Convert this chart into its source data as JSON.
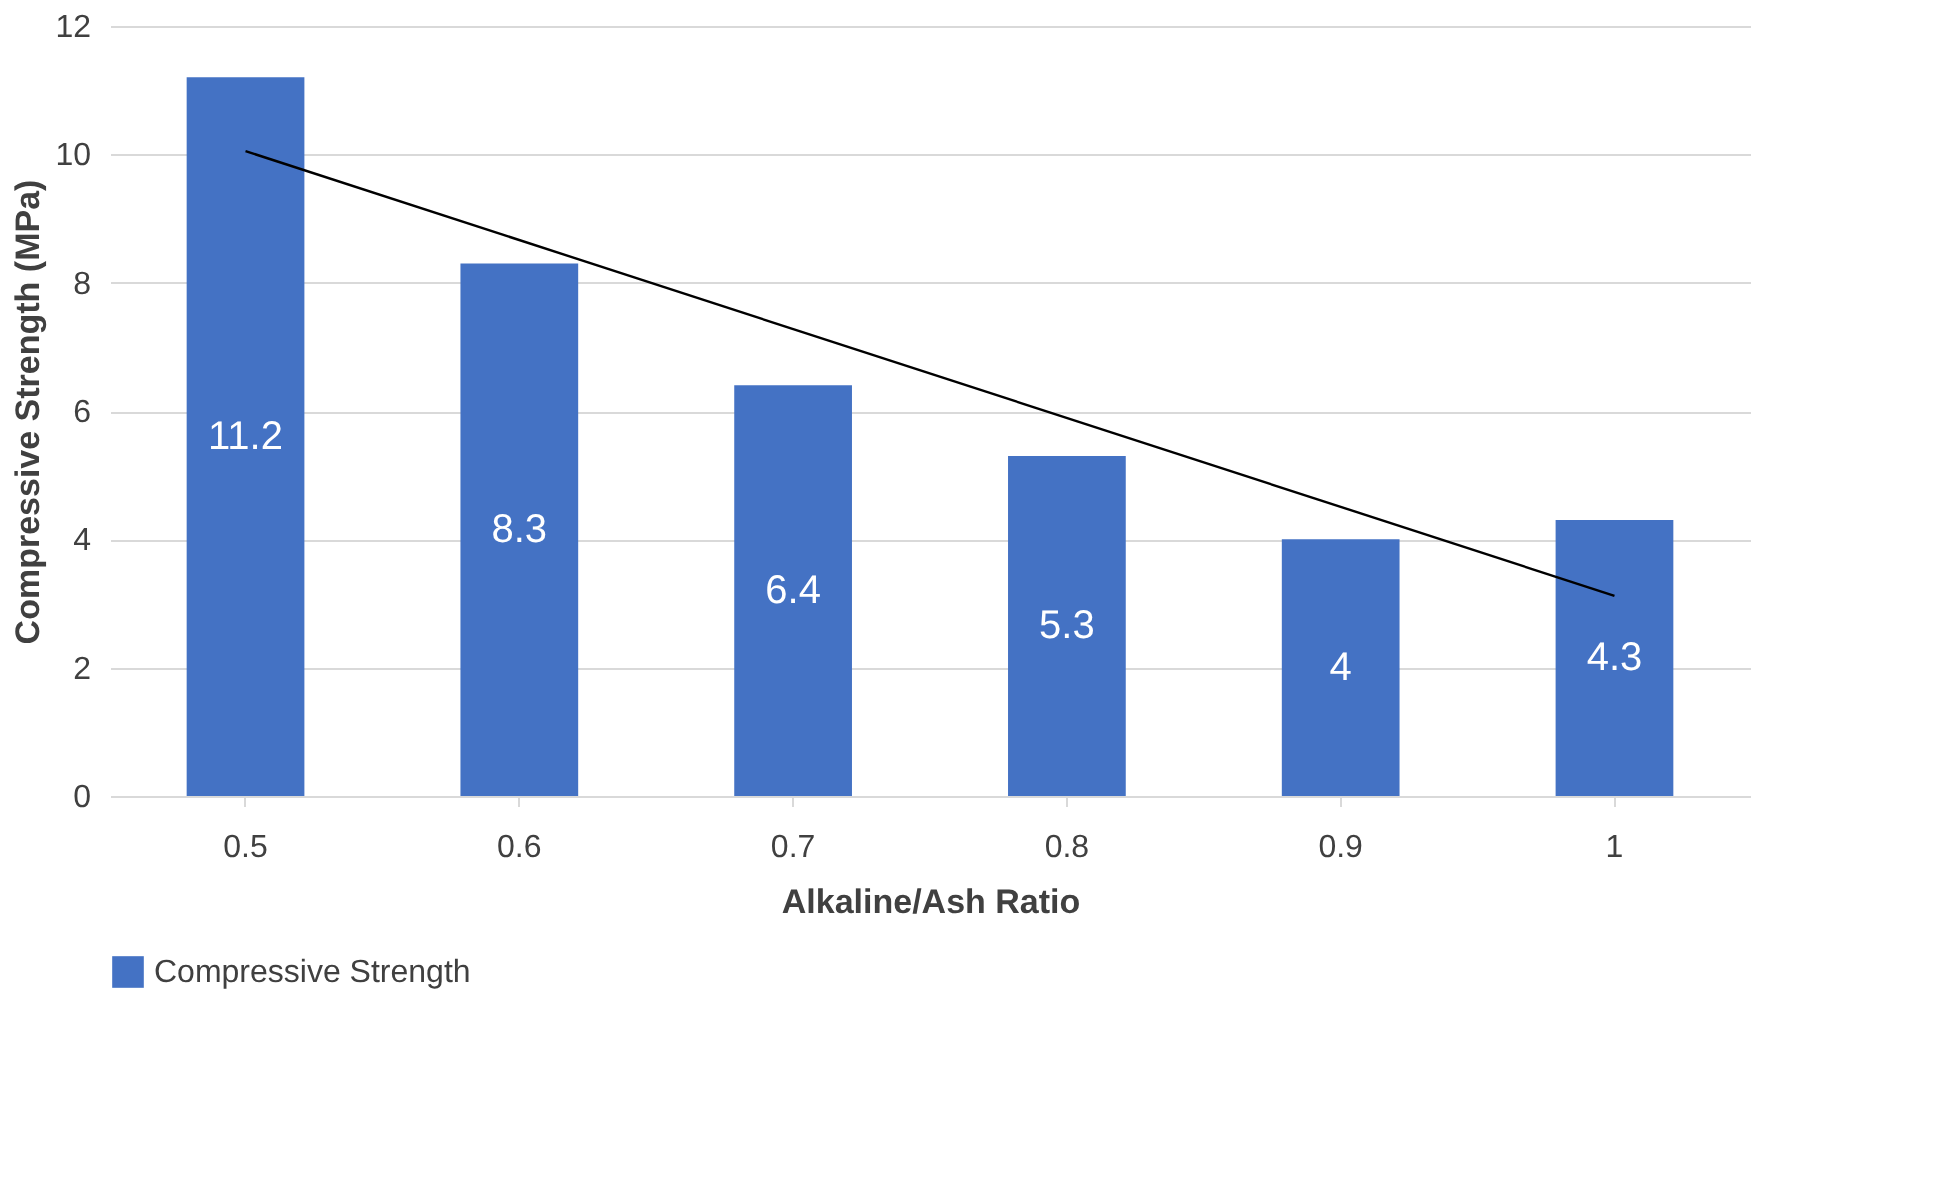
{
  "chart_data": {
    "type": "bar",
    "xlabel": "Alkaline/Ash Ratio",
    "ylabel": "Compressive Strength (MPa)",
    "categories": [
      "0.5",
      "0.6",
      "0.7",
      "0.8",
      "0.9",
      "1"
    ],
    "series": [
      {
        "name": "Compressive Strength",
        "color": "#4472c4",
        "values": [
          11.2,
          8.3,
          6.4,
          5.3,
          4,
          4.3
        ],
        "value_labels": [
          "11.2",
          "8.3",
          "6.4",
          "5.3",
          "4",
          "4.3"
        ]
      },
      {
        "type": "line",
        "color": "#000000",
        "x": [
          "0.5",
          "1"
        ],
        "values": [
          10.05,
          3.12
        ]
      }
    ],
    "ylim": [
      0,
      12
    ],
    "yticks": [
      0,
      2,
      4,
      6,
      8,
      10,
      12
    ],
    "grid": "y",
    "legend": "bottom"
  }
}
